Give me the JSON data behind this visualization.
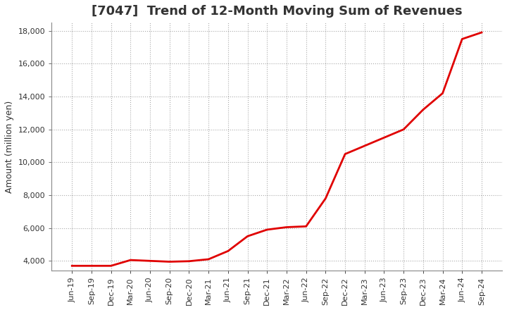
{
  "title": "[7047]  Trend of 12-Month Moving Sum of Revenues",
  "ylabel": "Amount (million yen)",
  "x_labels": [
    "Jun-19",
    "Sep-19",
    "Dec-19",
    "Mar-20",
    "Jun-20",
    "Sep-20",
    "Dec-20",
    "Mar-21",
    "Jun-21",
    "Sep-21",
    "Dec-21",
    "Mar-22",
    "Jun-22",
    "Sep-22",
    "Dec-22",
    "Mar-23",
    "Jun-23",
    "Sep-23",
    "Dec-23",
    "Mar-24",
    "Jun-24",
    "Sep-24"
  ],
  "y_values": [
    3700,
    3700,
    3700,
    4050,
    4000,
    3950,
    3980,
    4100,
    4600,
    5500,
    5900,
    6050,
    6100,
    7800,
    10500,
    11000,
    11500,
    12000,
    13200,
    14200,
    17500,
    17900
  ],
  "line_color": "#e00000",
  "ylim": [
    3400,
    18500
  ],
  "yticks": [
    4000,
    6000,
    8000,
    10000,
    12000,
    14000,
    16000,
    18000
  ],
  "grid_color": "#aaaaaa",
  "background_color": "#ffffff",
  "title_fontsize": 13,
  "label_fontsize": 9,
  "tick_fontsize": 8
}
